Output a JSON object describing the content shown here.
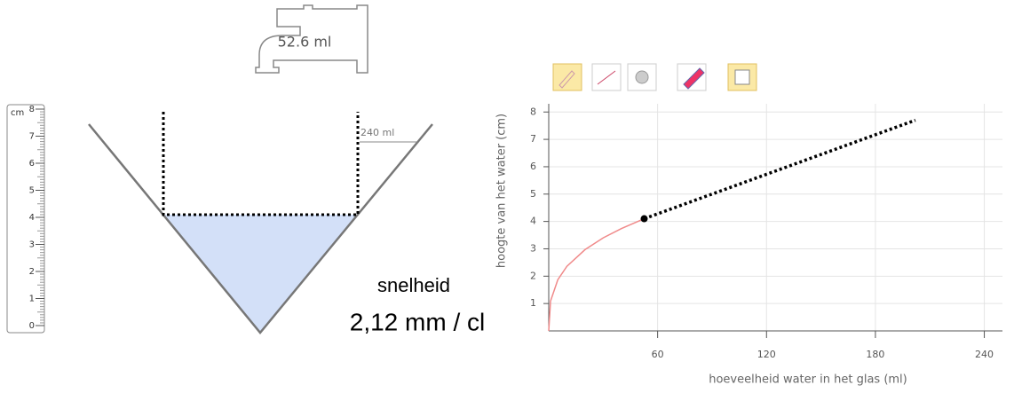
{
  "ui": {
    "tap_label": "52.6 ml",
    "ruler": {
      "unit": "cm",
      "ticks": [
        0,
        1,
        2,
        3,
        4,
        5,
        6,
        7,
        8
      ]
    },
    "glass_label": "240 ml",
    "speed_title": "snelheid",
    "speed_value": "2,12 mm / cl"
  },
  "chart_data": {
    "type": "line",
    "x_label": "hoeveelheid water in het glas (ml)",
    "y_label": "hoogte van het water (cm)",
    "xlim": [
      0,
      250
    ],
    "ylim": [
      0,
      8.3
    ],
    "xticks": [
      60,
      120,
      180,
      240
    ],
    "yticks": [
      1,
      2,
      3,
      4,
      5,
      6,
      7,
      8
    ],
    "grid": true,
    "series": [
      {
        "color": "#f08a8a",
        "x": [
          0,
          1,
          5,
          10,
          20,
          30,
          40,
          52.6
        ],
        "values": [
          0,
          1.09,
          1.87,
          2.36,
          2.97,
          3.4,
          3.74,
          4.1
        ]
      },
      {
        "color": "#000000",
        "x": [
          52.6,
          202
        ],
        "values": [
          4.1,
          7.7
        ]
      }
    ]
  }
}
